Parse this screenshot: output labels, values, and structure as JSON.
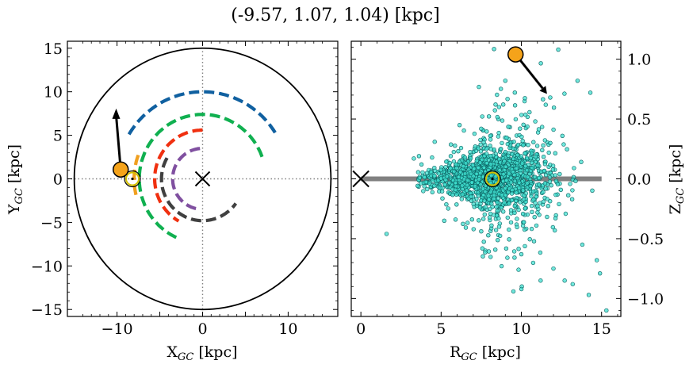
{
  "chart_data": [
    {
      "type": "scatter",
      "title": "(-9.57, 1.07, 1.04) [kpc]",
      "xlabel": "X_GC [kpc]",
      "ylabel": "Y_GC [kpc]",
      "xlim": [
        -15.8,
        15.8
      ],
      "ylim": [
        -15.8,
        15.8
      ],
      "x_ticks": [
        -10,
        -5,
        0,
        5,
        10
      ],
      "y_ticks": [
        -15,
        -10,
        -5,
        0,
        5,
        10,
        15
      ],
      "x_tick_labels": [
        "−10",
        "0",
        "10"
      ],
      "y_tick_labels": [
        "15",
        "10",
        "5",
        "0",
        "−5",
        "−10",
        "−15"
      ],
      "galaxy_radius": 15,
      "galactic_center": [
        0,
        0
      ],
      "sun_position": [
        -8.2,
        0
      ],
      "object_position": [
        -9.57,
        1.07
      ],
      "object_arrow_to": [
        -10.1,
        7.8
      ],
      "spiral_arms": [
        {
          "color": "#1060a0",
          "radius": 10.0,
          "theta_range_deg": [
            32,
            150
          ]
        },
        {
          "color": "#10b050",
          "radius": 7.4,
          "theta_range_deg": [
            20,
            248
          ]
        },
        {
          "color": "#f0a020",
          "radius": 8.0,
          "theta_range_deg": [
            160,
            195
          ]
        },
        {
          "color": "#f03010",
          "radius": 5.6,
          "theta_range_deg": [
            90,
            240
          ]
        },
        {
          "color": "#8050a0",
          "radius": 3.5,
          "theta_range_deg": [
            95,
            265
          ]
        },
        {
          "color": "#404040",
          "radius": 4.8,
          "theta_range_deg": [
            150,
            325
          ]
        }
      ],
      "grid": false
    },
    {
      "type": "scatter",
      "xlabel": "R_GC [kpc]",
      "ylabel": "Z_GC [kpc]",
      "xlim": [
        -0.6,
        16.2
      ],
      "ylim": [
        -1.15,
        1.15
      ],
      "x_ticks": [
        0,
        5,
        10,
        15
      ],
      "x_tick_labels": [
        "0",
        "5",
        "10",
        "15"
      ],
      "y_ticks": [
        1.0,
        0.5,
        0.0,
        -0.5,
        -1.0
      ],
      "y_tick_labels": [
        "1.0",
        "0.5",
        "0.0",
        "−0.5",
        "−1.0"
      ],
      "disk_line": [
        0,
        15
      ],
      "galactic_center": [
        0,
        0
      ],
      "sun_position": [
        8.2,
        0
      ],
      "object_position": [
        9.64,
        1.04
      ],
      "object_arrow_to": [
        11.6,
        0.71
      ],
      "stars": {
        "color": "#40e0d0",
        "count": 1600,
        "distribution": "disk stars concentrated near R 5-11 kpc, |Z| < 0.2 kpc, flaring with radius",
        "outliers": [
          [
            1.6,
            -0.46
          ],
          [
            3.3,
            0.17
          ],
          [
            4.6,
            0.31
          ],
          [
            5.6,
            0.19
          ],
          [
            5.9,
            -0.34
          ],
          [
            9.0,
            0.82
          ],
          [
            11.8,
            0.68
          ],
          [
            12.3,
            1.08
          ],
          [
            13.5,
            0.82
          ],
          [
            14.3,
            0.72
          ],
          [
            13.2,
            -0.88
          ],
          [
            14.2,
            -0.97
          ],
          [
            14.9,
            -0.79
          ],
          [
            15.3,
            -1.1
          ],
          [
            12.7,
            -0.85
          ],
          [
            10.0,
            -0.63
          ],
          [
            13.8,
            -0.55
          ],
          [
            14.7,
            -0.68
          ],
          [
            11.2,
            -0.85
          ],
          [
            12.0,
            -0.75
          ]
        ]
      },
      "grid": false
    }
  ],
  "colors": {
    "object": "#f5a31a",
    "sun": "#d4c000",
    "center_marker": "#000000",
    "disk_line": "#808080",
    "star_edge": "#0a6060",
    "circle": "#000000"
  },
  "labels": {
    "title": "(-9.57, 1.07, 1.04) [kpc]",
    "left_xlabel_main": "X",
    "left_xlabel_sub": "GC",
    "left_xlabel_unit": " [kpc]",
    "left_ylabel_main": "Y",
    "left_ylabel_sub": "GC",
    "left_ylabel_unit": " [kpc]",
    "right_xlabel_main": "R",
    "right_xlabel_sub": "GC",
    "right_xlabel_unit": " [kpc]",
    "right_ylabel_main": "Z",
    "right_ylabel_sub": "GC",
    "right_ylabel_unit": " [kpc]"
  }
}
